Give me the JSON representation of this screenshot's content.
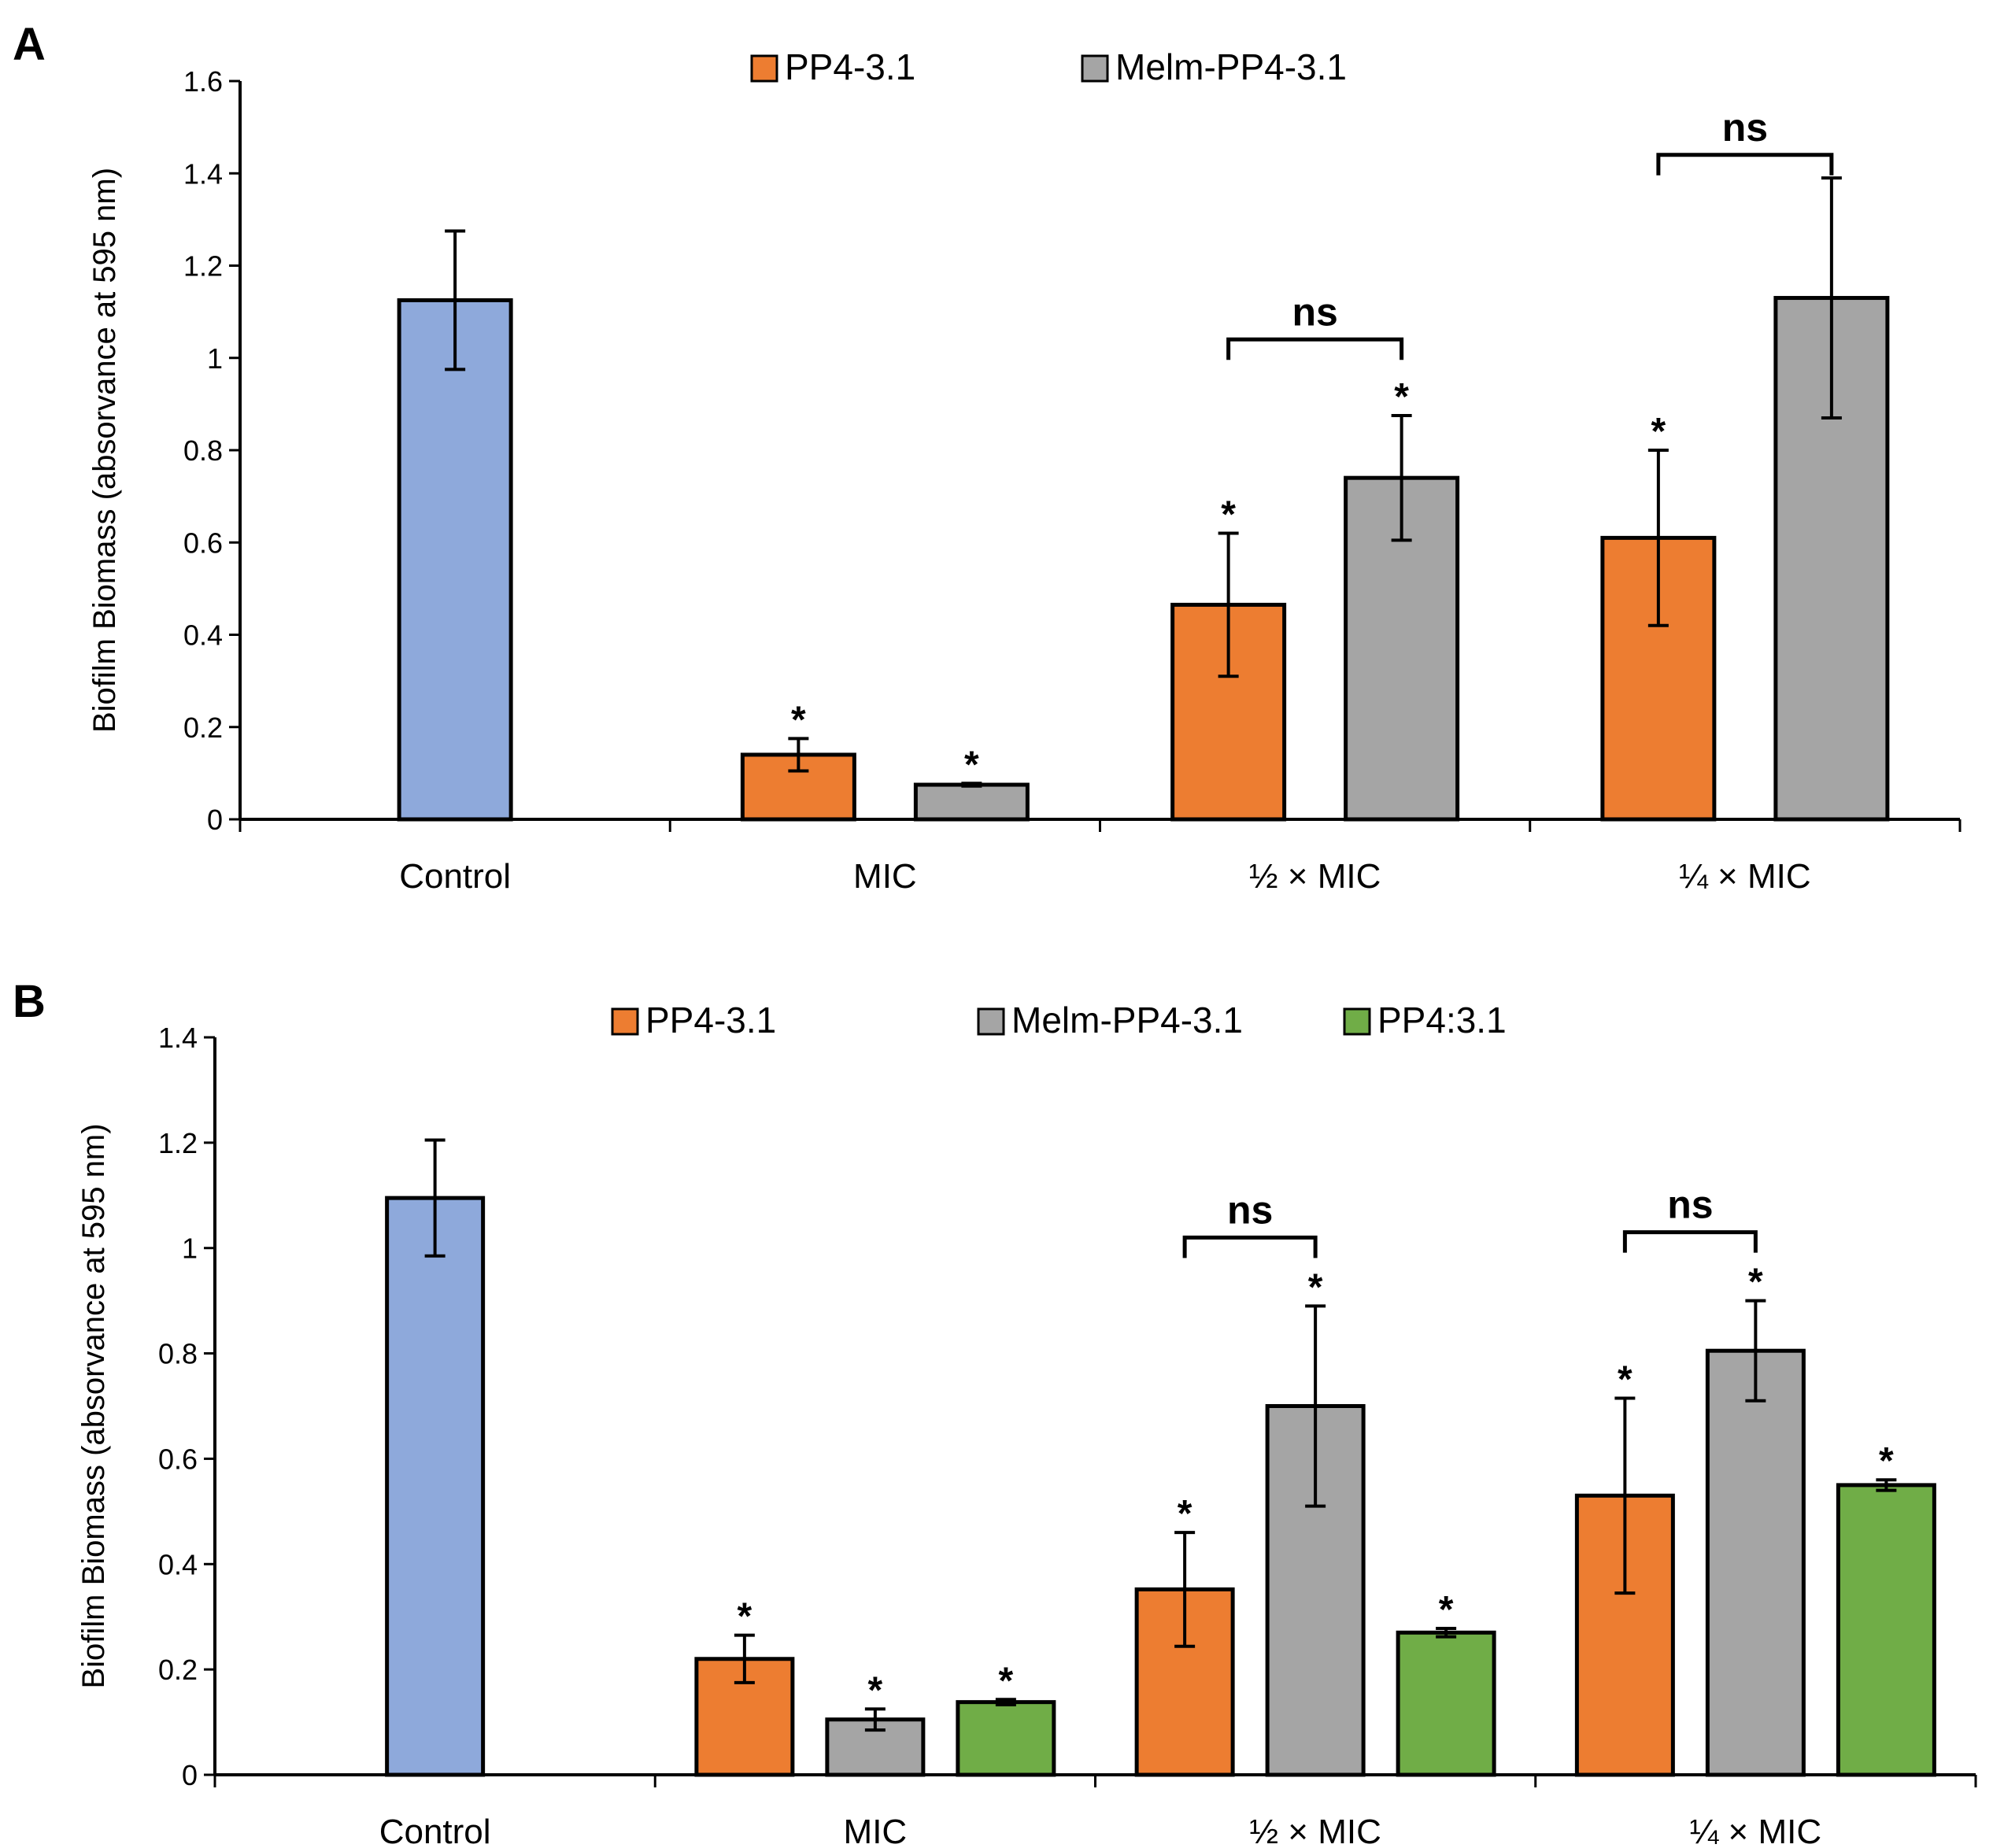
{
  "chart_data": [
    {
      "panel": "A",
      "type": "bar",
      "categories": [
        "Control",
        "MIC",
        "½ × MIC",
        "¼ × MIC"
      ],
      "ylabel": "Biofilm Biomass (absorvance at 595 nm)",
      "ylim": [
        0,
        1.6
      ],
      "yticks": [
        "0",
        "0.2",
        "0.4",
        "0.6",
        "0.8",
        "1",
        "1.2",
        "1.4",
        "1.6"
      ],
      "legend": {
        "placement": "top-center",
        "entries": [
          "PP4-3.1",
          "Melm-PP4-3.1"
        ]
      },
      "series": [
        {
          "name": "PP4-3.1",
          "color": "#ED7D31"
        },
        {
          "name": "Melm-PP4-3.1",
          "color": "#A5A5A5"
        }
      ],
      "bars": [
        {
          "category": 0,
          "color": "#8EA9DB",
          "value": 1.125,
          "err": 0.15,
          "star": false
        },
        {
          "category": 1,
          "series": 0,
          "value": 0.14,
          "err": 0.035,
          "star": true
        },
        {
          "category": 1,
          "series": 1,
          "value": 0.075,
          "err": 0.003,
          "star": true
        },
        {
          "category": 2,
          "series": 0,
          "value": 0.465,
          "err": 0.155,
          "star": true
        },
        {
          "category": 2,
          "series": 1,
          "value": 0.74,
          "err": 0.135,
          "star": true
        },
        {
          "category": 3,
          "series": 0,
          "value": 0.61,
          "err": 0.19,
          "star": true
        },
        {
          "category": 3,
          "series": 1,
          "value": 1.13,
          "err": 0.26,
          "star": false
        }
      ],
      "annotations": [
        {
          "category": 2,
          "text": "ns",
          "y": 1.04
        },
        {
          "category": 3,
          "text": "ns",
          "y": 1.44
        }
      ]
    },
    {
      "panel": "B",
      "type": "bar",
      "categories": [
        "Control",
        "MIC",
        "½ × MIC",
        "¼ × MIC"
      ],
      "ylabel": "Biofilm Biomass (absorvance at 595 nm)",
      "ylim": [
        0,
        1.4
      ],
      "yticks": [
        "0",
        "0.2",
        "0.4",
        "0.6",
        "0.8",
        "1",
        "1.2",
        "1.4"
      ],
      "legend": {
        "placement": "top-center",
        "entries": [
          "PP4-3.1",
          "Melm-PP4-3.1",
          "PP4:3.1"
        ]
      },
      "series": [
        {
          "name": "PP4-3.1",
          "color": "#ED7D31"
        },
        {
          "name": "Melm-PP4-3.1",
          "color": "#A5A5A5"
        },
        {
          "name": "PP4:3.1",
          "color": "#70AD47"
        }
      ],
      "bars": [
        {
          "category": 0,
          "color": "#8EA9DB",
          "value": 1.095,
          "err": 0.11,
          "star": false
        },
        {
          "category": 1,
          "series": 0,
          "value": 0.22,
          "err": 0.045,
          "star": true
        },
        {
          "category": 1,
          "series": 1,
          "value": 0.105,
          "err": 0.02,
          "star": true
        },
        {
          "category": 1,
          "series": 2,
          "value": 0.138,
          "err": 0.005,
          "star": true
        },
        {
          "category": 2,
          "series": 0,
          "value": 0.352,
          "err": 0.108,
          "star": true
        },
        {
          "category": 2,
          "series": 1,
          "value": 0.7,
          "err": 0.19,
          "star": true
        },
        {
          "category": 2,
          "series": 2,
          "value": 0.27,
          "err": 0.008,
          "star": true
        },
        {
          "category": 3,
          "series": 0,
          "value": 0.53,
          "err": 0.185,
          "star": true
        },
        {
          "category": 3,
          "series": 1,
          "value": 0.805,
          "err": 0.095,
          "star": true
        },
        {
          "category": 3,
          "series": 2,
          "value": 0.55,
          "err": 0.01,
          "star": true
        }
      ],
      "annotations": [
        {
          "category": 2,
          "text": "ns",
          "y": 1.02
        },
        {
          "category": 3,
          "text": "ns",
          "y": 1.03
        }
      ]
    }
  ]
}
